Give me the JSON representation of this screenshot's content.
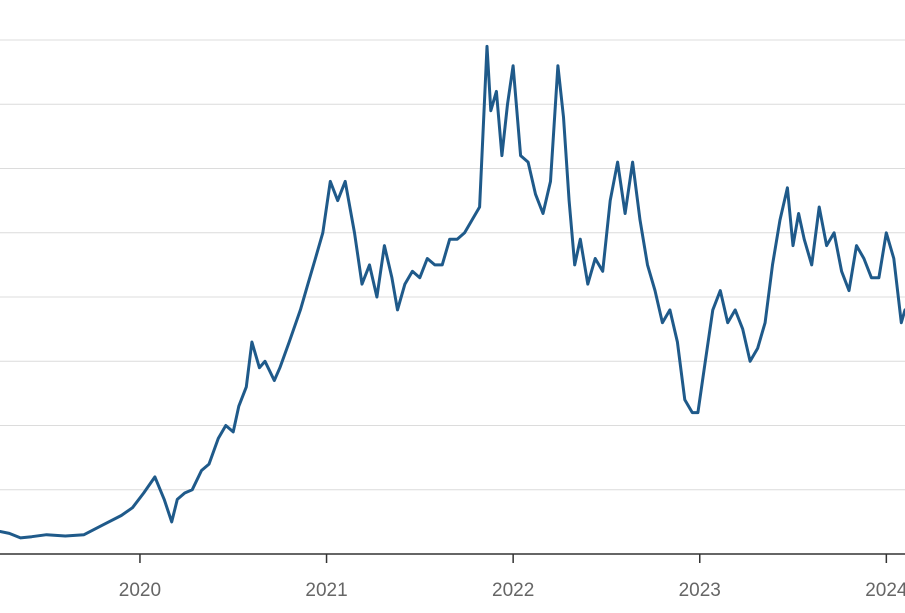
{
  "chart_data": {
    "type": "line",
    "title": "",
    "xlabel": "",
    "ylabel": "",
    "x_ticks": [
      "2020",
      "2021",
      "2022",
      "2023",
      "2024"
    ],
    "xlim": [
      2019.25,
      2024.1
    ],
    "ylim": [
      0,
      8
    ],
    "grid": true,
    "grid_lines": 8,
    "legend": "none",
    "color": "#1f5a8a",
    "series": [
      {
        "x": [
          2019.25,
          2019.3,
          2019.36,
          2019.42,
          2019.5,
          2019.6,
          2019.7,
          2019.8,
          2019.9,
          2019.96,
          2020.02,
          2020.08,
          2020.13,
          2020.17,
          2020.2,
          2020.24,
          2020.28,
          2020.33,
          2020.37,
          2020.42,
          2020.46,
          2020.5,
          2020.53,
          2020.57,
          2020.6,
          2020.64,
          2020.67,
          2020.72,
          2020.75,
          2020.8,
          2020.86,
          2020.9,
          2020.94,
          2020.98,
          2021.02,
          2021.06,
          2021.1,
          2021.15,
          2021.19,
          2021.23,
          2021.27,
          2021.31,
          2021.35,
          2021.38,
          2021.42,
          2021.46,
          2021.5,
          2021.54,
          2021.58,
          2021.62,
          2021.66,
          2021.7,
          2021.74,
          2021.78,
          2021.82,
          2021.86,
          2021.88,
          2021.91,
          2021.94,
          2021.97,
          2022.0,
          2022.04,
          2022.08,
          2022.12,
          2022.16,
          2022.2,
          2022.24,
          2022.27,
          2022.3,
          2022.33,
          2022.36,
          2022.4,
          2022.44,
          2022.48,
          2022.52,
          2022.56,
          2022.6,
          2022.64,
          2022.68,
          2022.72,
          2022.76,
          2022.8,
          2022.84,
          2022.88,
          2022.92,
          2022.96,
          2022.99,
          2023.03,
          2023.07,
          2023.11,
          2023.15,
          2023.19,
          2023.23,
          2023.27,
          2023.31,
          2023.35,
          2023.39,
          2023.43,
          2023.47,
          2023.5,
          2023.53,
          2023.56,
          2023.6,
          2023.64,
          2023.68,
          2023.72,
          2023.76,
          2023.8,
          2023.84,
          2023.88,
          2023.92,
          2023.96,
          2024.0,
          2024.04,
          2024.08,
          2024.1
        ],
        "y": [
          0.35,
          0.32,
          0.25,
          0.27,
          0.3,
          0.28,
          0.3,
          0.45,
          0.6,
          0.72,
          0.95,
          1.2,
          0.85,
          0.5,
          0.85,
          0.95,
          1.0,
          1.3,
          1.4,
          1.8,
          2.0,
          1.9,
          2.3,
          2.6,
          3.3,
          2.9,
          3.0,
          2.7,
          2.9,
          3.3,
          3.8,
          4.2,
          4.6,
          5.0,
          5.8,
          5.5,
          5.8,
          5.0,
          4.2,
          4.5,
          4.0,
          4.8,
          4.3,
          3.8,
          4.2,
          4.4,
          4.3,
          4.6,
          4.5,
          4.5,
          4.9,
          4.9,
          5.0,
          5.2,
          5.4,
          7.9,
          6.9,
          7.2,
          6.2,
          7.0,
          7.6,
          6.2,
          6.1,
          5.6,
          5.3,
          5.8,
          7.6,
          6.8,
          5.5,
          4.5,
          4.9,
          4.2,
          4.6,
          4.4,
          5.5,
          6.1,
          5.3,
          6.1,
          5.2,
          4.5,
          4.1,
          3.6,
          3.8,
          3.3,
          2.4,
          2.2,
          2.2,
          3.0,
          3.8,
          4.1,
          3.6,
          3.8,
          3.5,
          3.0,
          3.2,
          3.6,
          4.5,
          5.2,
          5.7,
          4.8,
          5.3,
          4.9,
          4.5,
          5.4,
          4.8,
          5.0,
          4.4,
          4.1,
          4.8,
          4.6,
          4.3,
          4.3,
          5.0,
          4.6,
          3.6,
          3.8
        ]
      }
    ]
  }
}
